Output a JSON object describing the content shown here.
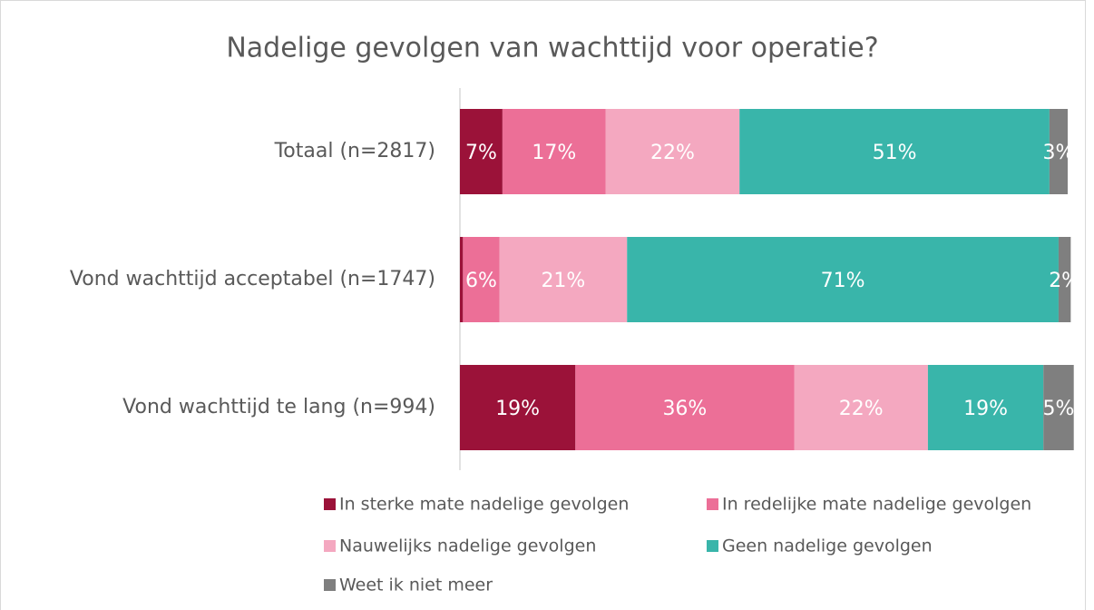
{
  "chart_data": {
    "type": "stacked-bar-horizontal",
    "title": "Nadelige gevolgen van wachttijd voor operatie?",
    "categories": [
      "Totaal (n=2817)",
      "Vond wachttijd acceptabel (n=1747)",
      "Vond wachttijd te lang (n=994)"
    ],
    "xlim": [
      0,
      100
    ],
    "series": [
      {
        "name": "In sterke mate nadelige gevolgen",
        "color": "#9b1239",
        "values": [
          7,
          0.5,
          19
        ],
        "value_labels": [
          "7%",
          null,
          "19%"
        ]
      },
      {
        "name": "In redelijke mate nadelige gevolgen",
        "color": "#ec6f97",
        "values": [
          17,
          6,
          36
        ],
        "value_labels": [
          "17%",
          "6%",
          "36%"
        ]
      },
      {
        "name": "Nauwelijks nadelige gevolgen",
        "color": "#f4a8c0",
        "values": [
          22,
          21,
          22
        ],
        "value_labels": [
          "22%",
          "21%",
          "22%"
        ]
      },
      {
        "name": "Geen nadelige gevolgen",
        "color": "#39b5aa",
        "values": [
          51,
          71,
          19
        ],
        "value_labels": [
          "51%",
          "71%",
          "19%"
        ]
      },
      {
        "name": "Weet ik niet meer",
        "color": "#7f7f7f",
        "values": [
          3,
          2,
          5
        ],
        "value_labels": [
          "3%",
          "2%",
          "5%"
        ]
      }
    ]
  }
}
